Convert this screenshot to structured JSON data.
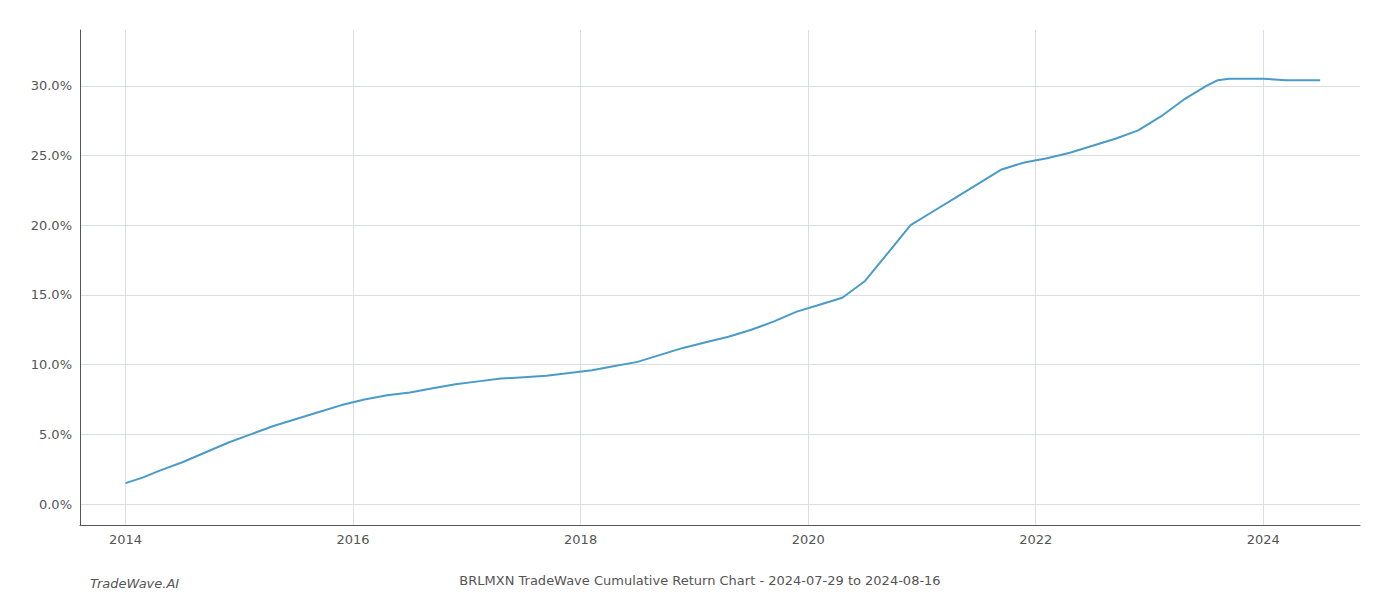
{
  "chart_data": {
    "type": "line",
    "title": "BRLMXN TradeWave Cumulative Return Chart - 2024-07-29 to 2024-08-16",
    "annotations": [
      "TradeWave.AI"
    ],
    "color": "#4a9cc7",
    "grid": true,
    "x": [
      2014.0,
      2014.15,
      2014.3,
      2014.5,
      2014.7,
      2014.9,
      2015.1,
      2015.3,
      2015.5,
      2015.7,
      2015.9,
      2016.1,
      2016.3,
      2016.5,
      2016.7,
      2016.9,
      2017.1,
      2017.3,
      2017.5,
      2017.7,
      2017.9,
      2018.1,
      2018.3,
      2018.5,
      2018.7,
      2018.9,
      2019.1,
      2019.3,
      2019.5,
      2019.7,
      2019.9,
      2020.1,
      2020.3,
      2020.5,
      2020.7,
      2020.9,
      2021.1,
      2021.3,
      2021.5,
      2021.7,
      2021.9,
      2022.1,
      2022.3,
      2022.5,
      2022.7,
      2022.9,
      2023.1,
      2023.3,
      2023.5,
      2023.6,
      2023.7,
      2023.85,
      2024.0,
      2024.2,
      2024.5
    ],
    "values": [
      1.5,
      1.9,
      2.4,
      3.0,
      3.7,
      4.4,
      5.0,
      5.6,
      6.1,
      6.6,
      7.1,
      7.5,
      7.8,
      8.0,
      8.3,
      8.6,
      8.8,
      9.0,
      9.1,
      9.2,
      9.4,
      9.6,
      9.9,
      10.2,
      10.7,
      11.2,
      11.6,
      12.0,
      12.5,
      13.1,
      13.8,
      14.3,
      14.8,
      16.0,
      18.0,
      20.0,
      21.0,
      22.0,
      23.0,
      24.0,
      24.5,
      24.8,
      25.2,
      25.7,
      26.2,
      26.8,
      27.8,
      29.0,
      30.0,
      30.4,
      30.5,
      30.5,
      30.5,
      30.4,
      30.4
    ],
    "xlim": [
      2013.6,
      2024.85
    ],
    "xticks": [
      2014,
      2016,
      2018,
      2020,
      2022,
      2024
    ],
    "ylim": [
      -1.5,
      34
    ],
    "yticks": [
      {
        "value": 0,
        "label": "0.0%"
      },
      {
        "value": 5,
        "label": "5.0%"
      },
      {
        "value": 10,
        "label": "10.0%"
      },
      {
        "value": 15,
        "label": "15.0%"
      },
      {
        "value": 20,
        "label": "20.0%"
      },
      {
        "value": 25,
        "label": "25.0%"
      },
      {
        "value": 30,
        "label": "30.0%"
      }
    ]
  }
}
